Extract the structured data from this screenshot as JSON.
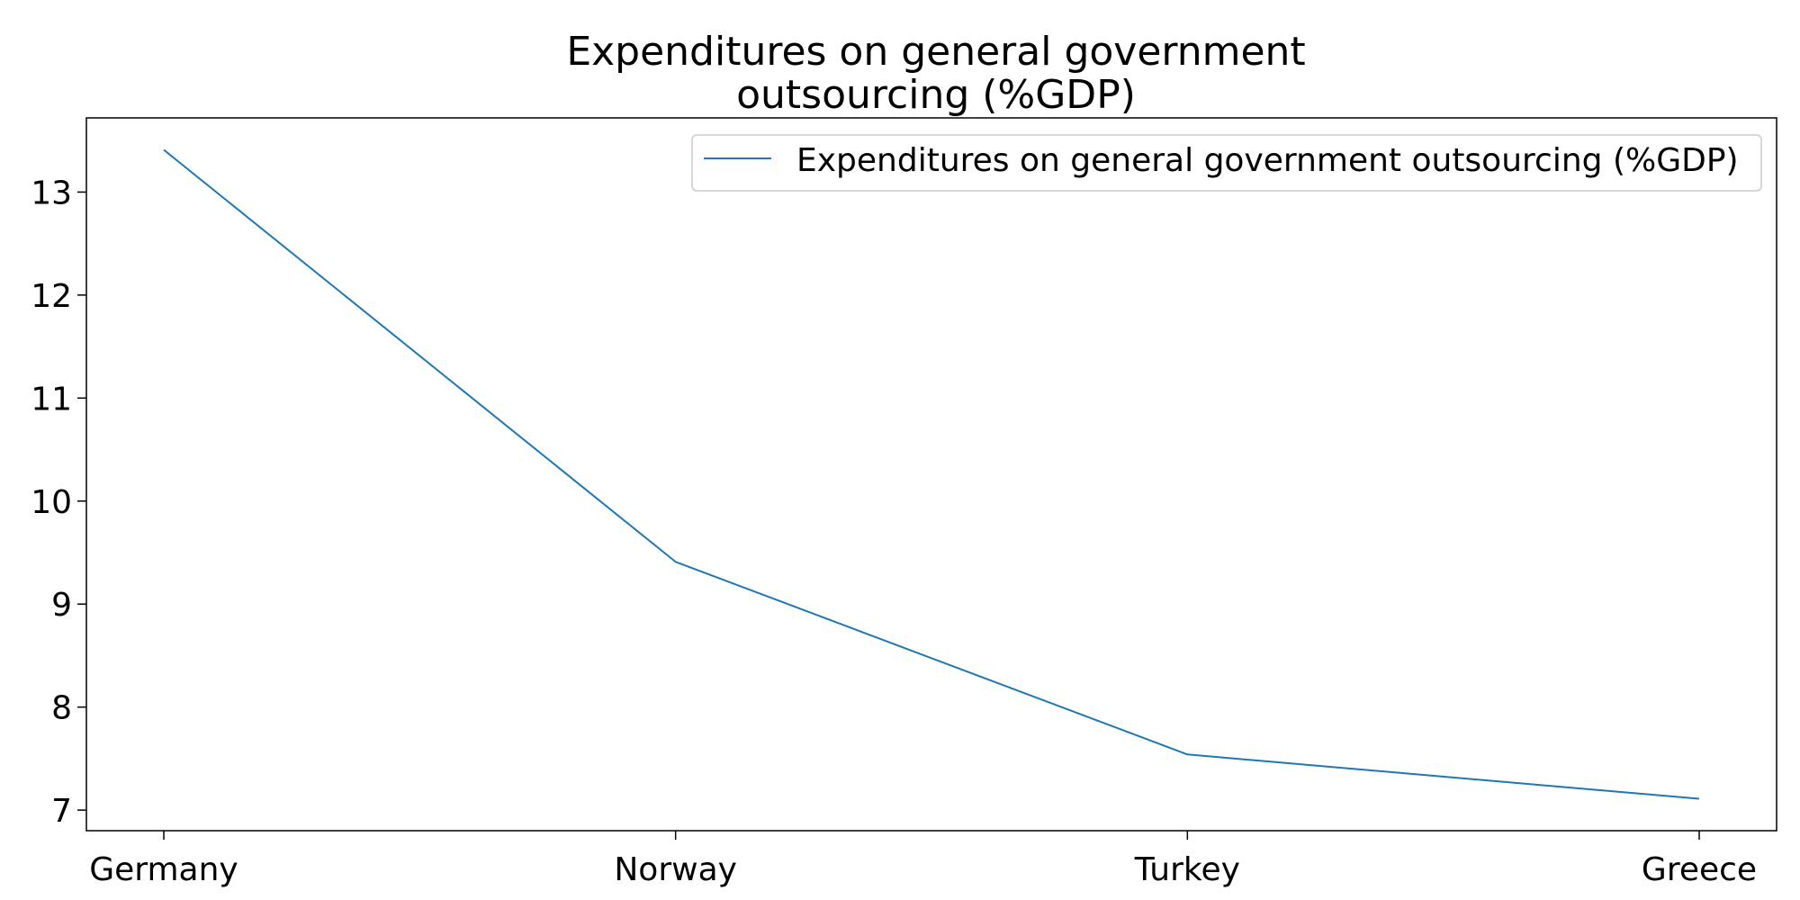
{
  "chart_data": {
    "type": "line",
    "title": [
      "Expenditures on general government",
      "outsourcing (%GDP)"
    ],
    "xlabel": "",
    "ylabel": "",
    "categories": [
      "Germany",
      "Norway",
      "Turkey",
      "Greece"
    ],
    "series": [
      {
        "name": "Expenditures on general government outsourcing (%GDP)",
        "values": [
          13.41,
          9.41,
          7.54,
          7.11
        ],
        "color": "#1f77b4"
      }
    ],
    "yticks": [
      7,
      8,
      9,
      10,
      11,
      12,
      13
    ],
    "ylim": [
      6.8,
      13.72
    ],
    "grid": false,
    "legend": "top-right"
  }
}
